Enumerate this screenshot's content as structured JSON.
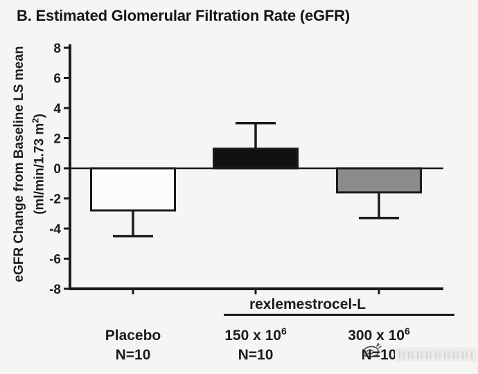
{
  "title": "B. Estimated Glomerular Filtration Rate (eGFR)",
  "chart_data": {
    "type": "bar",
    "title": "B. Estimated Glomerular Filtration Rate (eGFR)",
    "ylabel": "eGFR Change from Baseline LS mean",
    "ylabel_unit_pre": "(ml/min/1.73 m",
    "ylabel_unit_sup": "2",
    "ylabel_unit_post": ")",
    "xlabel": "",
    "ylim": [
      -8,
      8
    ],
    "yticks": [
      8,
      6,
      4,
      2,
      0,
      -2,
      -4,
      -6,
      -8
    ],
    "grid": false,
    "legend": "none",
    "categories": [
      {
        "base": "Placebo",
        "exp": "",
        "n": "N=10"
      },
      {
        "base": "150 x 10",
        "exp": "6",
        "n": "N=10"
      },
      {
        "base": "300 x 10",
        "exp": "6",
        "n": "N=10"
      }
    ],
    "series": [
      {
        "name": "eGFR change from baseline (LS mean)",
        "values": [
          -2.8,
          1.3,
          -1.6
        ],
        "errors": [
          1.7,
          1.7,
          1.7
        ]
      }
    ],
    "group_label": "rexlemestrocel-L",
    "group_span_categories": [
      "150 x 10^6",
      "300 x 10^6"
    ],
    "bar_fill_colors": [
      "#fcfcfc",
      "#111111",
      "#8c8b89"
    ],
    "bar_border_color": "#1a1a1a",
    "axis_color": "#1b1b1b"
  }
}
